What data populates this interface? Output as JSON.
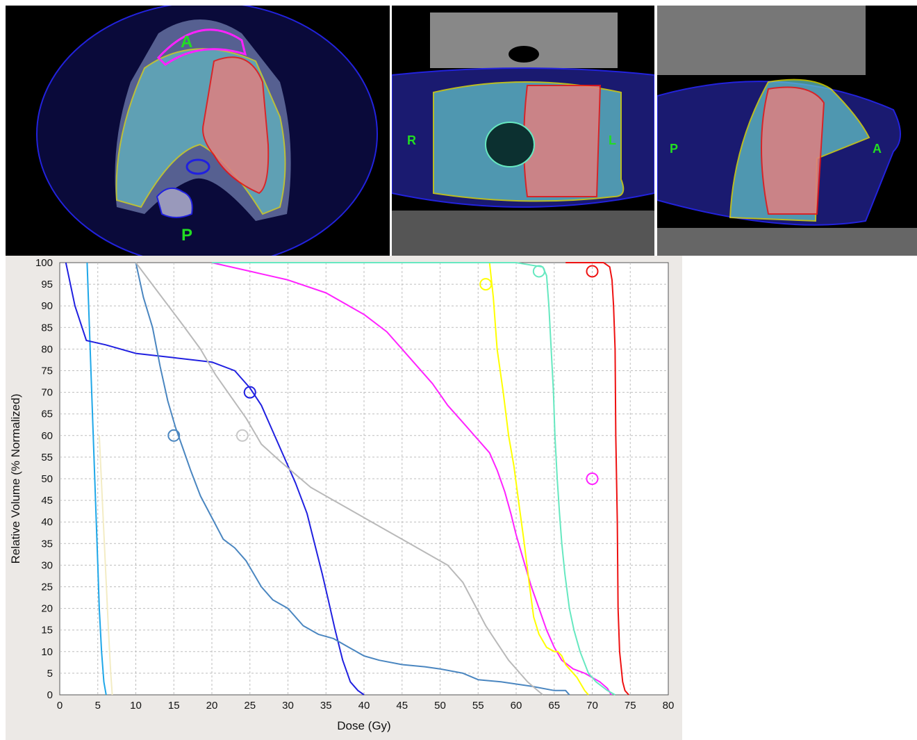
{
  "images": {
    "axial": {
      "labels": {
        "anterior": "A",
        "posterior": "P"
      }
    },
    "coronal": {
      "labels": {
        "right": "R",
        "left": "L"
      }
    },
    "sagittal": {
      "labels": {
        "posterior": "P",
        "anterior": "A"
      }
    }
  },
  "chart_data": {
    "type": "line",
    "title": "",
    "xlabel": "Dose (Gy)",
    "ylabel": "Relative Volume (% Normalized)",
    "xlim": [
      0,
      80
    ],
    "ylim": [
      0,
      100
    ],
    "x_ticks": [
      0,
      5,
      10,
      15,
      20,
      25,
      30,
      35,
      40,
      45,
      50,
      55,
      60,
      65,
      70,
      75,
      80
    ],
    "y_ticks": [
      0,
      5,
      10,
      15,
      20,
      25,
      30,
      35,
      40,
      45,
      50,
      55,
      60,
      65,
      70,
      75,
      80,
      85,
      90,
      95,
      100
    ],
    "grid": true,
    "series": [
      {
        "color": "#1ea7e8",
        "points": [
          [
            3.6,
            100
          ],
          [
            3.8,
            90
          ],
          [
            4.0,
            80
          ],
          [
            4.2,
            70
          ],
          [
            4.4,
            60
          ],
          [
            4.6,
            50
          ],
          [
            4.8,
            40
          ],
          [
            5.0,
            30
          ],
          [
            5.2,
            20
          ],
          [
            5.5,
            10
          ],
          [
            5.8,
            3
          ],
          [
            6.1,
            0
          ]
        ]
      },
      {
        "color": "#f3ecc4",
        "points": [
          [
            5.2,
            60
          ],
          [
            5.6,
            45
          ],
          [
            6.0,
            30
          ],
          [
            6.4,
            15
          ],
          [
            6.7,
            5
          ],
          [
            6.9,
            0
          ]
        ]
      },
      {
        "color": "#2020e0",
        "points": [
          [
            0.8,
            100
          ],
          [
            2.0,
            90
          ],
          [
            3.5,
            82
          ],
          [
            6,
            81
          ],
          [
            10,
            79
          ],
          [
            15,
            78
          ],
          [
            20,
            77
          ],
          [
            23,
            75
          ],
          [
            25,
            71
          ],
          [
            26.5,
            67
          ],
          [
            28,
            61
          ],
          [
            29.5,
            55
          ],
          [
            31,
            49
          ],
          [
            32.5,
            42
          ],
          [
            33.5,
            35
          ],
          [
            34.5,
            28
          ],
          [
            35.3,
            22
          ],
          [
            36.2,
            15
          ],
          [
            37.2,
            8
          ],
          [
            38.2,
            3
          ],
          [
            39.2,
            1
          ],
          [
            40,
            0
          ]
        ]
      },
      {
        "color": "#4a86c0",
        "points": [
          [
            10,
            100
          ],
          [
            11,
            92
          ],
          [
            12.2,
            85
          ],
          [
            13.2,
            76
          ],
          [
            14.2,
            68
          ],
          [
            15.2,
            62
          ],
          [
            16.2,
            57
          ],
          [
            17.2,
            52
          ],
          [
            18.5,
            46
          ],
          [
            20,
            41
          ],
          [
            21.5,
            36
          ],
          [
            23,
            34
          ],
          [
            24.5,
            31
          ],
          [
            25.5,
            28
          ],
          [
            26.5,
            25
          ],
          [
            28,
            22
          ],
          [
            30,
            20
          ],
          [
            32,
            16
          ],
          [
            34,
            14
          ],
          [
            36,
            13
          ],
          [
            38,
            11
          ],
          [
            40,
            9
          ],
          [
            42,
            8
          ],
          [
            45,
            7
          ],
          [
            48,
            6.5
          ],
          [
            50,
            6
          ],
          [
            53,
            5
          ],
          [
            55,
            3.5
          ],
          [
            58,
            3
          ],
          [
            62,
            2
          ],
          [
            65,
            1
          ],
          [
            66.5,
            1
          ],
          [
            67,
            0
          ]
        ]
      },
      {
        "color": "#b9b9b9",
        "points": [
          [
            10,
            100
          ],
          [
            13,
            93
          ],
          [
            16,
            86
          ],
          [
            18.5,
            80
          ],
          [
            20.5,
            74
          ],
          [
            22.5,
            69
          ],
          [
            24.5,
            64
          ],
          [
            26.5,
            58
          ],
          [
            29,
            54
          ],
          [
            31,
            51
          ],
          [
            33,
            48
          ],
          [
            36,
            45
          ],
          [
            38,
            43
          ],
          [
            41,
            40
          ],
          [
            43,
            38
          ],
          [
            46,
            35
          ],
          [
            49,
            32
          ],
          [
            51,
            30
          ],
          [
            53,
            26
          ],
          [
            54.5,
            21
          ],
          [
            56,
            16
          ],
          [
            57.5,
            12
          ],
          [
            59,
            8
          ],
          [
            60.5,
            5
          ],
          [
            61.5,
            3
          ],
          [
            62.5,
            1.5
          ],
          [
            63.5,
            0
          ]
        ]
      },
      {
        "color": "#ff22ff",
        "points": [
          [
            20,
            100
          ],
          [
            25,
            98
          ],
          [
            30,
            96
          ],
          [
            35,
            93
          ],
          [
            40,
            88
          ],
          [
            43,
            84
          ],
          [
            46,
            78
          ],
          [
            49,
            72
          ],
          [
            51,
            67
          ],
          [
            53,
            63
          ],
          [
            55,
            59
          ],
          [
            56.5,
            56
          ],
          [
            57.5,
            52
          ],
          [
            58.5,
            47
          ],
          [
            59.3,
            42
          ],
          [
            60,
            37
          ],
          [
            61,
            31
          ],
          [
            62,
            25
          ],
          [
            63,
            20
          ],
          [
            64,
            15
          ],
          [
            65,
            11
          ],
          [
            66,
            8
          ],
          [
            67.5,
            6
          ],
          [
            69,
            5
          ],
          [
            70,
            4
          ],
          [
            71,
            3
          ],
          [
            72,
            1.5
          ],
          [
            72.5,
            0
          ]
        ]
      },
      {
        "color": "#ffff00",
        "points": [
          [
            56.5,
            100
          ],
          [
            57,
            92
          ],
          [
            57.5,
            80
          ],
          [
            58.3,
            70
          ],
          [
            59,
            60
          ],
          [
            59.7,
            53
          ],
          [
            60.3,
            45
          ],
          [
            61,
            36
          ],
          [
            61.7,
            26
          ],
          [
            62.3,
            18
          ],
          [
            63,
            14
          ],
          [
            64,
            11
          ],
          [
            65,
            10
          ],
          [
            65.5,
            10
          ],
          [
            66,
            9
          ],
          [
            66.5,
            7
          ],
          [
            67,
            6
          ],
          [
            68,
            4
          ],
          [
            69,
            1
          ],
          [
            69.5,
            0
          ]
        ]
      },
      {
        "color": "#66e8c0",
        "points": [
          [
            20,
            100
          ],
          [
            60,
            100
          ],
          [
            63.5,
            99
          ],
          [
            64,
            97
          ],
          [
            64.3,
            90
          ],
          [
            64.6,
            80
          ],
          [
            64.9,
            70
          ],
          [
            65.1,
            60
          ],
          [
            65.4,
            50
          ],
          [
            65.7,
            42
          ],
          [
            66,
            35
          ],
          [
            66.4,
            28
          ],
          [
            67,
            20
          ],
          [
            67.6,
            15
          ],
          [
            68.4,
            10
          ],
          [
            69.5,
            5
          ],
          [
            70.5,
            3
          ],
          [
            72,
            1
          ],
          [
            73,
            0
          ]
        ]
      },
      {
        "color": "#ee1111",
        "points": [
          [
            66.5,
            100
          ],
          [
            71.5,
            100
          ],
          [
            72.3,
            99
          ],
          [
            72.6,
            96
          ],
          [
            72.8,
            90
          ],
          [
            73,
            80
          ],
          [
            73.1,
            60
          ],
          [
            73.3,
            40
          ],
          [
            73.4,
            20
          ],
          [
            73.6,
            10
          ],
          [
            74,
            3
          ],
          [
            74.3,
            1
          ],
          [
            74.8,
            0
          ]
        ]
      }
    ],
    "markers": [
      {
        "color": "#2020e0",
        "x": 25,
        "y": 70
      },
      {
        "color": "#4a86c0",
        "x": 15,
        "y": 60
      },
      {
        "color": "#c8c8c8",
        "x": 24,
        "y": 60
      },
      {
        "color": "#ffff00",
        "x": 56,
        "y": 95
      },
      {
        "color": "#66e8c0",
        "x": 63,
        "y": 98
      },
      {
        "color": "#ee1111",
        "x": 70,
        "y": 98
      },
      {
        "color": "#ff22ff",
        "x": 70,
        "y": 50
      }
    ]
  }
}
